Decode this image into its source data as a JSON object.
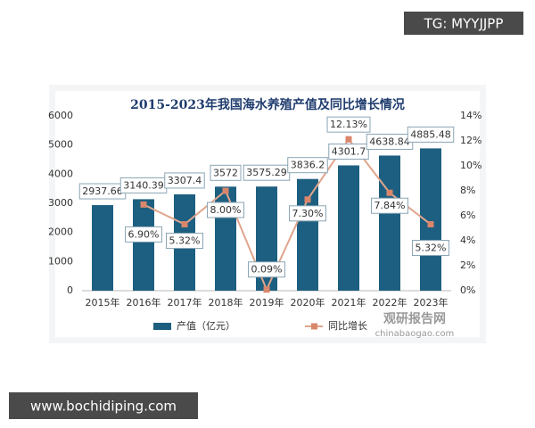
{
  "overlay": {
    "top_right": "TG: MYYJJPP",
    "bottom_left": "www.bochidiping.com"
  },
  "chart_data": {
    "type": "bar-line",
    "title": "2015-2023年我国海水养殖产值及同比增长情况",
    "categories": [
      "2015年",
      "2016年",
      "2017年",
      "2018年",
      "2019年",
      "2020年",
      "2021年",
      "2022年",
      "2023年"
    ],
    "series": [
      {
        "name": "产值（亿元）",
        "color": "#1d5f80",
        "values": [
          2937.66,
          3140.39,
          3307.4,
          3572,
          3575.29,
          3836.2,
          4301.7,
          4638.84,
          4885.48
        ]
      },
      {
        "name": "同比增长",
        "color": "#e0a58c",
        "axis": "y2",
        "values": [
          null,
          6.9,
          5.32,
          8.0,
          0.09,
          7.3,
          12.13,
          7.84,
          5.32
        ],
        "value_labels": [
          null,
          "6.90%",
          "5.32%",
          "8.00%",
          "0.09%",
          "7.30%",
          "12.13%",
          "7.84%",
          "5.32%"
        ]
      }
    ],
    "ylim": [
      0,
      6000
    ],
    "yticks": [
      0,
      1000,
      2000,
      3000,
      4000,
      5000,
      6000
    ],
    "y2lim": [
      0,
      14
    ],
    "y2ticks": [
      {
        "value": 0,
        "label": "0%"
      },
      {
        "value": 2,
        "label": "2%"
      },
      {
        "value": 4,
        "label": "4%"
      },
      {
        "value": 6,
        "label": "6%"
      },
      {
        "value": 8,
        "label": "8%"
      },
      {
        "value": 10,
        "label": "10%"
      },
      {
        "value": 12,
        "label": "12%"
      },
      {
        "value": 14,
        "label": "14%"
      }
    ],
    "grid": false,
    "annotations": [
      "观研报告网",
      "chinabaogao.com"
    ]
  }
}
